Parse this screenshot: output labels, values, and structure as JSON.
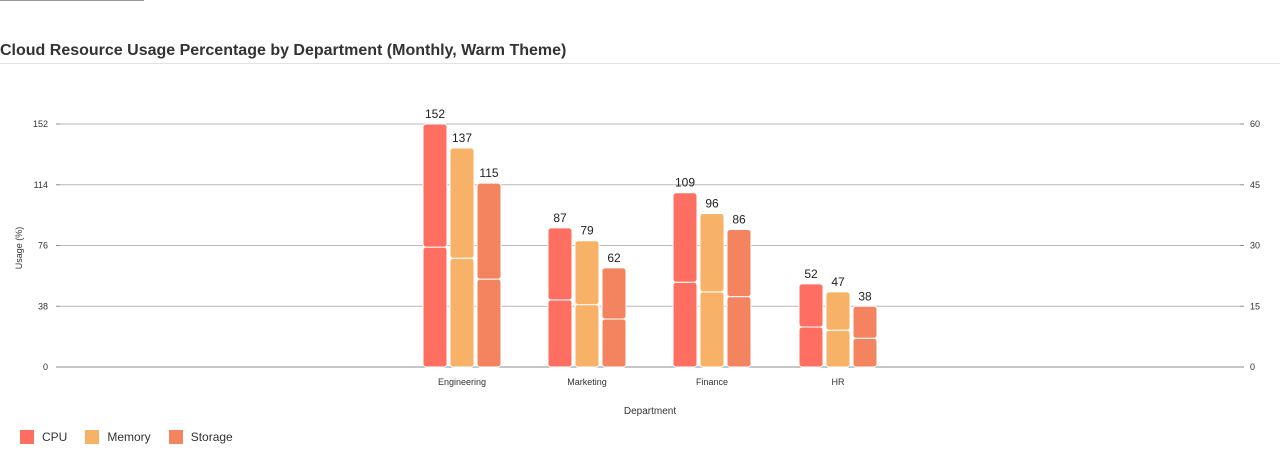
{
  "chart_data": {
    "type": "bar",
    "title": "Cloud Resource Usage Percentage by Department (Monthly, Warm Theme)",
    "xlabel": "Department",
    "ylabel": "Usage (%)",
    "categories": [
      "Engineering",
      "Marketing",
      "Finance",
      "HR"
    ],
    "series": [
      {
        "name": "CPU",
        "color": "#ff6f61",
        "values": [
          152,
          87,
          109,
          52
        ],
        "inner_split": [
          75,
          42,
          53,
          25
        ]
      },
      {
        "name": "Memory",
        "color": "#f7b267",
        "values": [
          137,
          79,
          96,
          47
        ],
        "inner_split": [
          68,
          39,
          47,
          23
        ]
      },
      {
        "name": "Storage",
        "color": "#f4845f",
        "values": [
          115,
          62,
          86,
          38
        ],
        "inner_split": [
          55,
          30,
          44,
          18
        ]
      }
    ],
    "ylim": [
      0,
      152
    ],
    "yticks": [
      "0",
      "38",
      "76",
      "114",
      "152"
    ],
    "y2lim": [
      0,
      60
    ],
    "y2ticks": [
      "0",
      "15",
      "30",
      "45",
      "60"
    ],
    "grid": true,
    "legend_position": "bottom-left"
  }
}
